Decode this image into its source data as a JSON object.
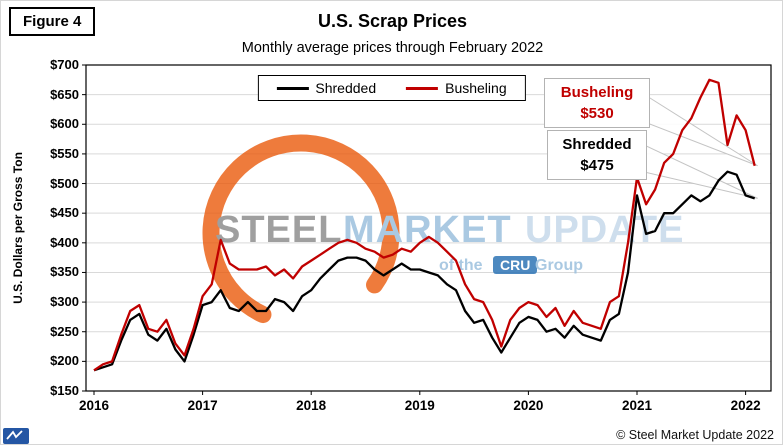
{
  "figure_label": "Figure 4",
  "title": "U.S. Scrap Prices",
  "subtitle": "Monthly average prices through February 2022",
  "y_axis_title": "U.S. Dollars per Gross Ton",
  "annotations": [
    {
      "label": "Busheling",
      "value": "$530",
      "color": "#c00000"
    },
    {
      "label": "Shredded",
      "value": "$475",
      "color": "#000000"
    }
  ],
  "watermark": {
    "word1": "STEEL",
    "word2": "MARKET",
    "word3": "UPDATE",
    "tagline_prefix": "of the",
    "tagline_brand": "CRU",
    "tagline_suffix": "Group",
    "arc_color": "#e95b0e"
  },
  "footer": {
    "copyright": "© Steel Market Update 2022"
  },
  "colors": {
    "shredded": "#000000",
    "busheling": "#c00000",
    "grid": "#d9d9d9",
    "plot_border": "#000000",
    "callout_leader": "#c4c4c4"
  },
  "chart_data": {
    "type": "line",
    "title": "U.S. Scrap Prices",
    "subtitle": "Monthly average prices through February 2022",
    "ylabel": "U.S. Dollars per Gross Ton",
    "ylim": [
      150,
      700
    ],
    "ytick_step": 50,
    "ytick_prefix": "$",
    "grid": "horizontal",
    "legend_position": "top-center",
    "year_labels": [
      "2016",
      "2017",
      "2018",
      "2019",
      "2020",
      "2021",
      "2022"
    ],
    "x": [
      "2016-01",
      "2016-02",
      "2016-03",
      "2016-04",
      "2016-05",
      "2016-06",
      "2016-07",
      "2016-08",
      "2016-09",
      "2016-10",
      "2016-11",
      "2016-12",
      "2017-01",
      "2017-02",
      "2017-03",
      "2017-04",
      "2017-05",
      "2017-06",
      "2017-07",
      "2017-08",
      "2017-09",
      "2017-10",
      "2017-11",
      "2017-12",
      "2018-01",
      "2018-02",
      "2018-03",
      "2018-04",
      "2018-05",
      "2018-06",
      "2018-07",
      "2018-08",
      "2018-09",
      "2018-10",
      "2018-11",
      "2018-12",
      "2019-01",
      "2019-02",
      "2019-03",
      "2019-04",
      "2019-05",
      "2019-06",
      "2019-07",
      "2019-08",
      "2019-09",
      "2019-10",
      "2019-11",
      "2019-12",
      "2020-01",
      "2020-02",
      "2020-03",
      "2020-04",
      "2020-05",
      "2020-06",
      "2020-07",
      "2020-08",
      "2020-09",
      "2020-10",
      "2020-11",
      "2020-12",
      "2021-01",
      "2021-02",
      "2021-03",
      "2021-04",
      "2021-05",
      "2021-06",
      "2021-07",
      "2021-08",
      "2021-09",
      "2021-10",
      "2021-11",
      "2021-12",
      "2022-01",
      "2022-02"
    ],
    "series": [
      {
        "name": "Shredded",
        "color": "#000000",
        "values": [
          185,
          190,
          195,
          235,
          270,
          280,
          245,
          235,
          255,
          220,
          200,
          245,
          295,
          300,
          320,
          290,
          285,
          300,
          285,
          285,
          305,
          300,
          285,
          310,
          320,
          340,
          355,
          370,
          375,
          375,
          370,
          355,
          345,
          355,
          365,
          355,
          355,
          350,
          345,
          330,
          320,
          285,
          265,
          270,
          240,
          215,
          240,
          265,
          275,
          270,
          250,
          255,
          240,
          260,
          245,
          240,
          235,
          270,
          280,
          350,
          480,
          415,
          420,
          450,
          450,
          465,
          480,
          470,
          480,
          505,
          520,
          515,
          480,
          475
        ]
      },
      {
        "name": "Busheling",
        "color": "#c00000",
        "values": [
          185,
          195,
          200,
          245,
          285,
          295,
          255,
          250,
          270,
          230,
          210,
          255,
          310,
          330,
          405,
          365,
          355,
          355,
          355,
          360,
          345,
          355,
          340,
          360,
          370,
          380,
          390,
          400,
          405,
          400,
          390,
          385,
          375,
          380,
          390,
          385,
          400,
          410,
          400,
          385,
          370,
          330,
          305,
          300,
          270,
          225,
          270,
          290,
          300,
          295,
          275,
          290,
          260,
          285,
          265,
          260,
          255,
          300,
          310,
          400,
          510,
          465,
          490,
          535,
          550,
          590,
          610,
          645,
          675,
          670,
          565,
          615,
          590,
          530
        ]
      }
    ]
  }
}
